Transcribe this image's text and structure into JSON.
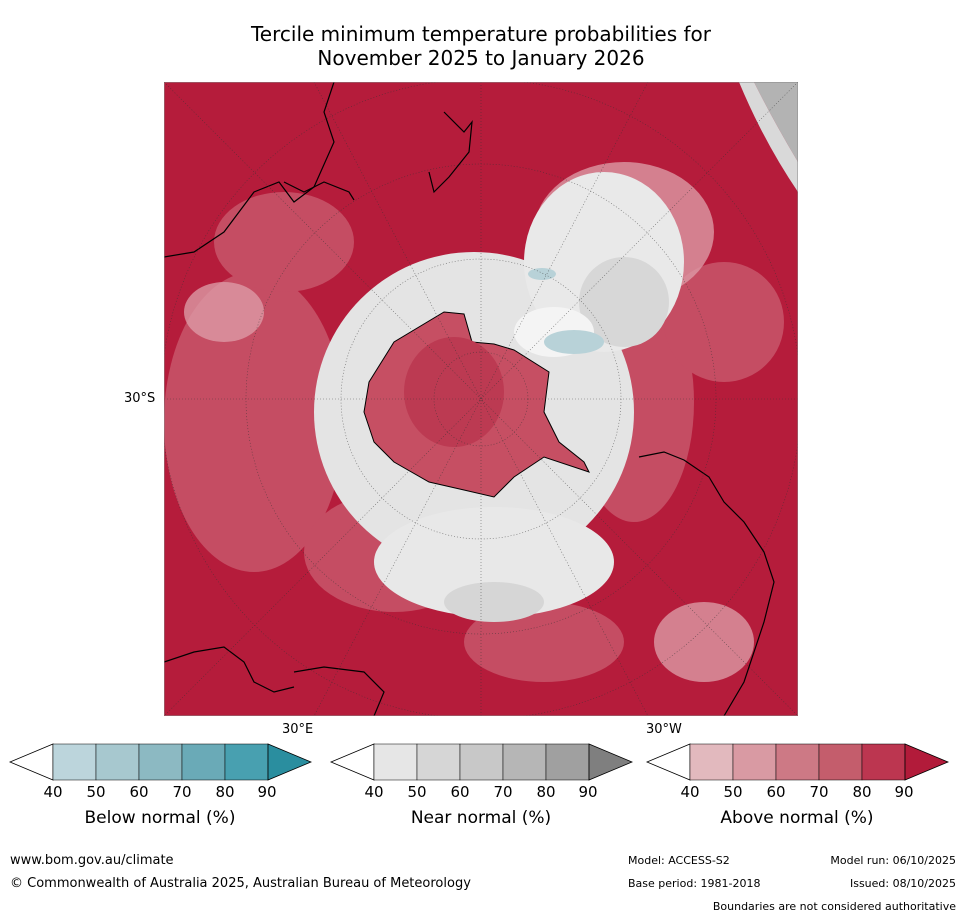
{
  "title": {
    "line1": "Tercile minimum temperature probabilities for",
    "line2": "November 2025 to January 2026"
  },
  "map": {
    "projection": "south-polar",
    "latitude_labels": [
      "30°S"
    ],
    "longitude_labels": [
      "30°E",
      "30°W"
    ]
  },
  "legend": {
    "colorbars": [
      {
        "name": "below",
        "title": "Below normal (%)",
        "ticks": [
          "40",
          "50",
          "60",
          "70",
          "80",
          "90"
        ],
        "colors": [
          "#ffffff",
          "#bcd5dc",
          "#a7c8cf",
          "#8cb9c2",
          "#6aaab7",
          "#48a0b0",
          "#2a8e9f"
        ]
      },
      {
        "name": "near",
        "title": "Near normal (%)",
        "ticks": [
          "40",
          "50",
          "60",
          "70",
          "80",
          "90"
        ],
        "colors": [
          "#ffffff",
          "#e6e6e6",
          "#d6d6d6",
          "#c8c8c8",
          "#b6b6b6",
          "#a0a0a0",
          "#7f7f7f"
        ]
      },
      {
        "name": "above",
        "title": "Above normal (%)",
        "ticks": [
          "40",
          "50",
          "60",
          "70",
          "80",
          "90"
        ],
        "colors": [
          "#ffffff",
          "#e2b9be",
          "#d99aa3",
          "#cd7985",
          "#c45d6c",
          "#bc3650",
          "#b21b3a"
        ]
      }
    ]
  },
  "footer": {
    "url": "www.bom.gov.au/climate",
    "copyright": "© Commonwealth of Australia 2025, Australian Bureau of Meteorology",
    "model": "Model: ACCESS-S2",
    "model_run": "Model run: 06/10/2025",
    "base_period": "Base period: 1981-2018",
    "issued": "Issued: 08/10/2025",
    "disclaimer": "Boundaries are not considered authoritative"
  }
}
